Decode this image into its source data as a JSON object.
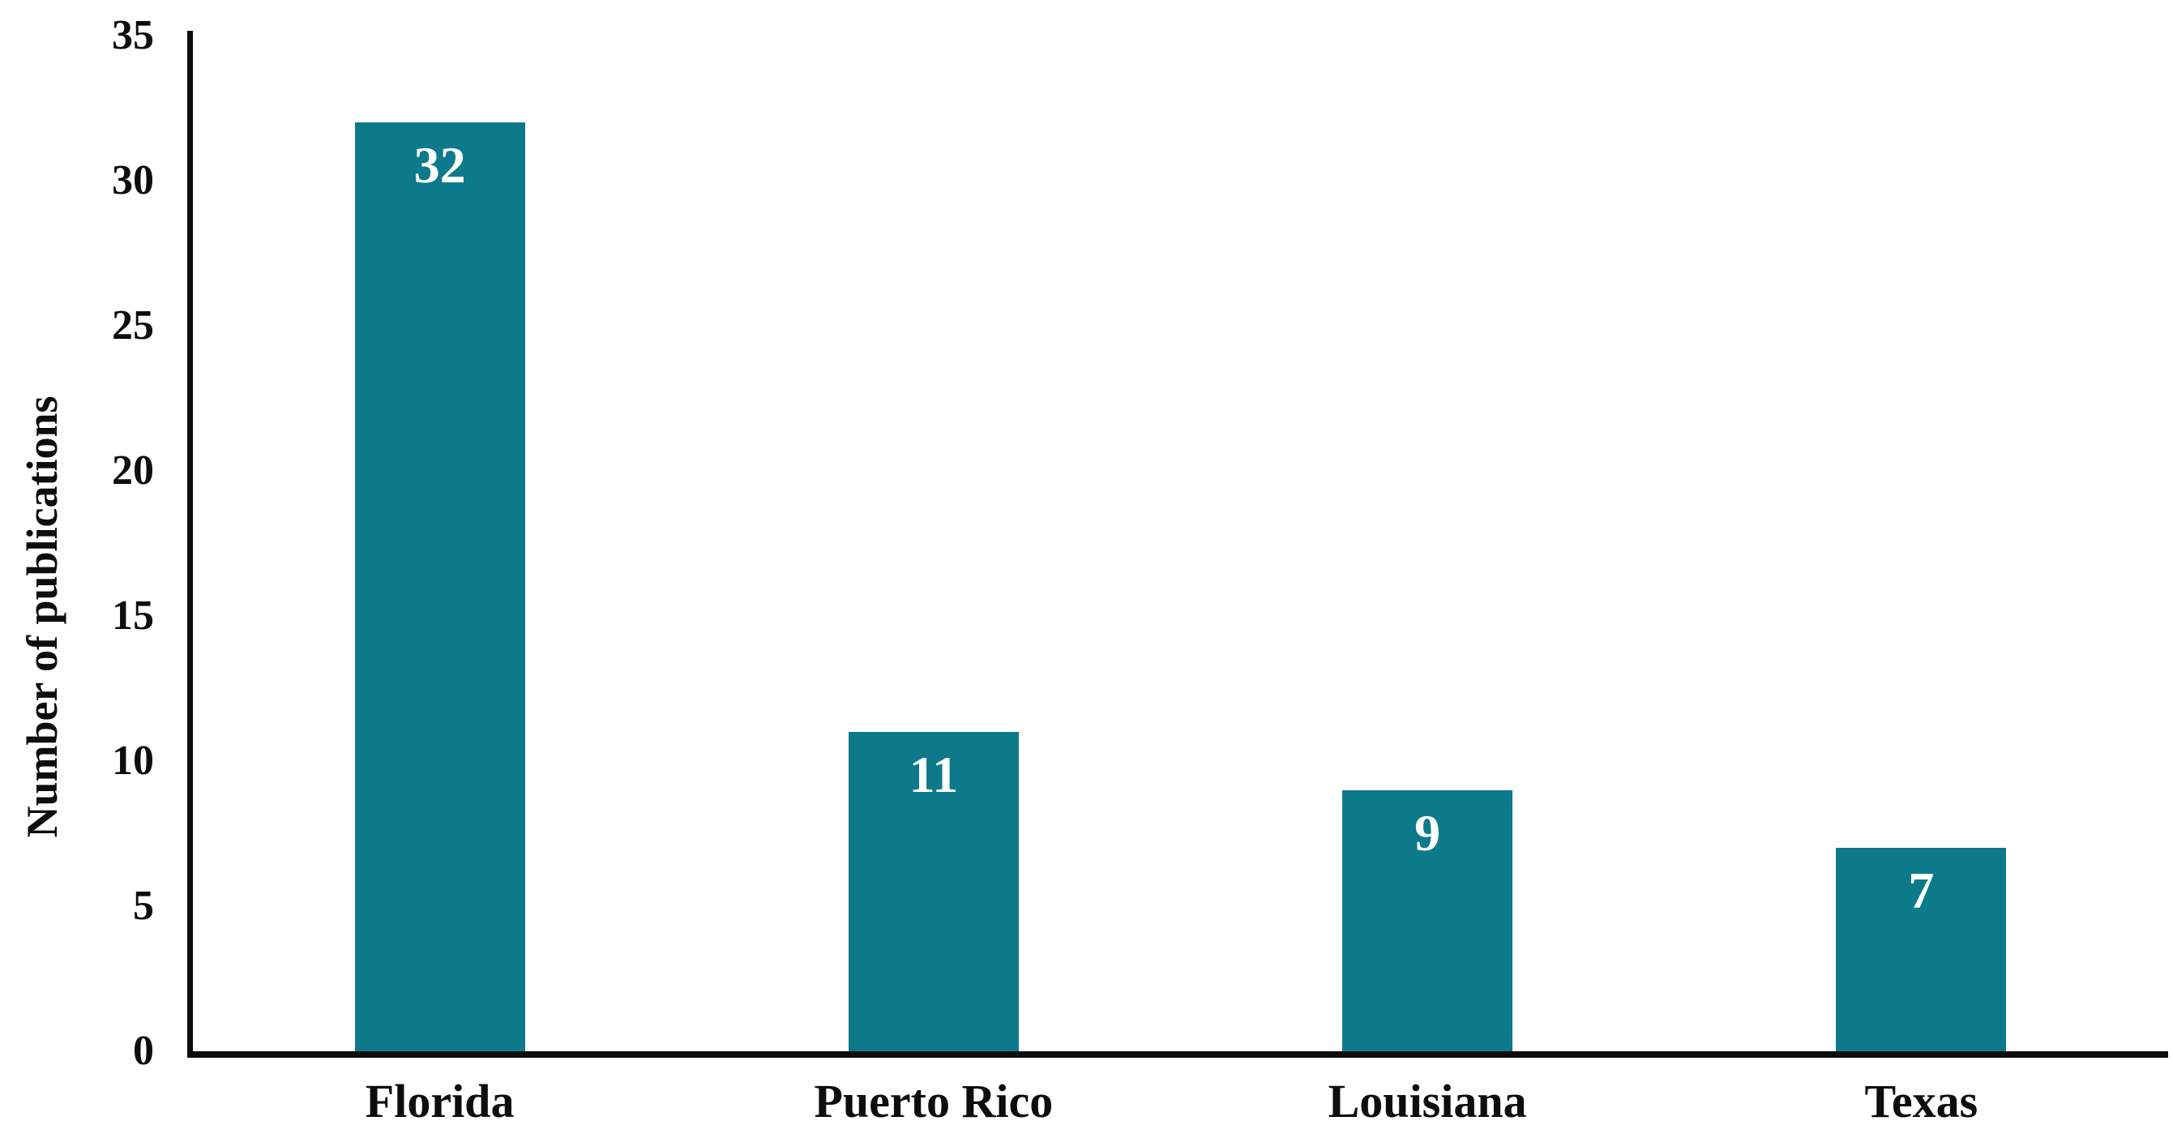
{
  "chart_data": {
    "type": "bar",
    "categories": [
      "Florida",
      "Puerto Rico",
      "Louisiana",
      "Texas"
    ],
    "values": [
      32,
      11,
      9,
      7
    ],
    "title": "",
    "xlabel": "",
    "ylabel": "Number of publications",
    "ylim": [
      0,
      35
    ],
    "yticks": [
      0,
      5,
      10,
      15,
      20,
      25,
      30,
      35
    ],
    "grid": false,
    "legend": false,
    "data_label_position": "inside-top",
    "colors": {
      "bar": "#0d7a8c",
      "bar_label": "#ffffff",
      "axis": "#0d0d0d",
      "text": "#0d0d0d",
      "background": "#ffffff"
    }
  }
}
